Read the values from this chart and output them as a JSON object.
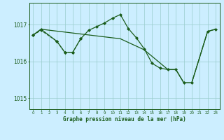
{
  "title": "Graphe pression niveau de la mer (hPa)",
  "background_color": "#cceeff",
  "grid_color": "#99cccc",
  "line_color": "#1a5c1a",
  "marker_color": "#1a5c1a",
  "xlim": [
    -0.5,
    23.5
  ],
  "ylim": [
    1014.7,
    1017.6
  ],
  "yticks": [
    1015,
    1016,
    1017
  ],
  "xticks": [
    0,
    1,
    2,
    3,
    4,
    5,
    6,
    7,
    8,
    9,
    10,
    11,
    12,
    13,
    14,
    15,
    16,
    17,
    18,
    19,
    20,
    21,
    22,
    23
  ],
  "line1": {
    "x": [
      0,
      1,
      3,
      4,
      5,
      6
    ],
    "y": [
      1016.72,
      1016.85,
      1016.55,
      1016.25,
      1016.25,
      1016.62
    ],
    "style": "--",
    "lw": 0.8,
    "marker": "D",
    "ms": 2.0
  },
  "line2": {
    "x": [
      0,
      1,
      3,
      4,
      5,
      6,
      7,
      8,
      9,
      10,
      11,
      12,
      13,
      14,
      15,
      16,
      17,
      18,
      19,
      20,
      22,
      23
    ],
    "y": [
      1016.72,
      1016.88,
      1016.55,
      1016.25,
      1016.25,
      1016.62,
      1016.85,
      1016.95,
      1017.05,
      1017.18,
      1017.28,
      1016.9,
      1016.65,
      1016.35,
      1015.95,
      1015.82,
      1015.78,
      1015.78,
      1015.42,
      1015.42,
      1016.82,
      1016.88
    ],
    "style": "-",
    "lw": 0.9,
    "marker": "D",
    "ms": 2.0
  },
  "line3": {
    "x": [
      0,
      1,
      11,
      14,
      17,
      18,
      19,
      20,
      22,
      23
    ],
    "y": [
      1016.72,
      1016.88,
      1016.62,
      1016.32,
      1015.78,
      1015.78,
      1015.42,
      1015.42,
      1016.82,
      1016.88
    ],
    "style": "-",
    "lw": 0.9,
    "marker": null,
    "ms": 0
  }
}
